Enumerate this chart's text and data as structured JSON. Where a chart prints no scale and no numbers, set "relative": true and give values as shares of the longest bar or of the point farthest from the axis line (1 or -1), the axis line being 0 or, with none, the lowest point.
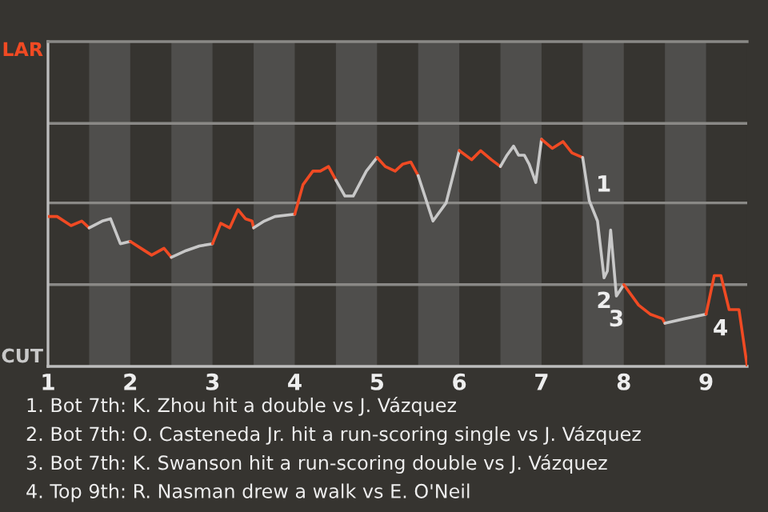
{
  "chart_data": {
    "type": "line",
    "relative": true,
    "xlim": [
      1,
      9.5
    ],
    "xticks": [
      {
        "value": 1,
        "label": "1"
      },
      {
        "value": 2,
        "label": "2"
      },
      {
        "value": 3,
        "label": "3"
      },
      {
        "value": 4,
        "label": "4"
      },
      {
        "value": 5,
        "label": "5"
      },
      {
        "value": 6,
        "label": "6"
      },
      {
        "value": 7,
        "label": "7"
      },
      {
        "value": 8,
        "label": "8"
      },
      {
        "value": 9,
        "label": "9"
      }
    ],
    "ref_lines": [
      {
        "axis": "y",
        "value": 0.36,
        "color": "#8a8986"
      },
      {
        "axis": "y",
        "value": 0.72,
        "color": "#8a8986"
      },
      {
        "axis": "y",
        "value": 1.07,
        "color": "#8a8986"
      }
    ],
    "legend": false,
    "marker": "none",
    "line_style": "solid",
    "bands": [
      {
        "axis": "x",
        "from": 1.5,
        "to": 2,
        "color": "#4f4e4c"
      },
      {
        "axis": "x",
        "from": 2.5,
        "to": 3,
        "color": "#4f4e4c"
      },
      {
        "axis": "x",
        "from": 3.5,
        "to": 4,
        "color": "#4f4e4c"
      },
      {
        "axis": "x",
        "from": 4.5,
        "to": 5,
        "color": "#4f4e4c"
      },
      {
        "axis": "x",
        "from": 5.5,
        "to": 6,
        "color": "#4f4e4c"
      },
      {
        "axis": "x",
        "from": 6.5,
        "to": 7,
        "color": "#4f4e4c"
      },
      {
        "axis": "x",
        "from": 7.5,
        "to": 8,
        "color": "#4f4e4c"
      },
      {
        "axis": "x",
        "from": 8.5,
        "to": 9,
        "color": "#4f4e4c"
      }
    ],
    "series": [
      {
        "color": "#f04a23",
        "x": [
          1.0,
          1.11,
          1.28,
          1.41,
          1.5
        ],
        "values": [
          0.66,
          0.66,
          0.62,
          0.64,
          0.61
        ]
      },
      {
        "color": "#c8c8c8",
        "x": [
          1.5,
          1.66,
          1.76,
          1.88,
          2.0
        ],
        "values": [
          0.61,
          0.64,
          0.65,
          0.54,
          0.55
        ]
      },
      {
        "color": "#f04a23",
        "x": [
          2.0,
          2.13,
          2.26,
          2.41,
          2.5
        ],
        "values": [
          0.55,
          0.52,
          0.49,
          0.52,
          0.48
        ]
      },
      {
        "color": "#c8c8c8",
        "x": [
          2.5,
          2.68,
          2.84,
          3.0
        ],
        "values": [
          0.48,
          0.51,
          0.53,
          0.54
        ]
      },
      {
        "color": "#f04a23",
        "x": [
          3.0,
          3.1,
          3.21,
          3.31,
          3.4,
          3.48,
          3.5
        ],
        "values": [
          0.54,
          0.63,
          0.61,
          0.69,
          0.65,
          0.64,
          0.61
        ]
      },
      {
        "color": "#c8c8c8",
        "x": [
          3.5,
          3.63,
          3.76,
          4.0
        ],
        "values": [
          0.61,
          0.64,
          0.66,
          0.67
        ]
      },
      {
        "color": "#f04a23",
        "x": [
          4.0,
          4.1,
          4.22,
          4.31,
          4.41,
          4.5
        ],
        "values": [
          0.67,
          0.8,
          0.86,
          0.86,
          0.88,
          0.82
        ]
      },
      {
        "color": "#c8c8c8",
        "x": [
          4.5,
          4.61,
          4.71,
          4.87,
          5.0
        ],
        "values": [
          0.82,
          0.75,
          0.75,
          0.86,
          0.92
        ]
      },
      {
        "color": "#f04a23",
        "x": [
          5.0,
          5.1,
          5.22,
          5.31,
          5.41,
          5.5
        ],
        "values": [
          0.92,
          0.88,
          0.86,
          0.89,
          0.9,
          0.84
        ]
      },
      {
        "color": "#c8c8c8",
        "x": [
          5.5,
          5.68,
          5.84,
          6.0
        ],
        "values": [
          0.84,
          0.64,
          0.72,
          0.95
        ]
      },
      {
        "color": "#f04a23",
        "x": [
          6.0,
          6.15,
          6.26,
          6.39,
          6.5
        ],
        "values": [
          0.95,
          0.91,
          0.95,
          0.91,
          0.88
        ]
      },
      {
        "color": "#c8c8c8",
        "x": [
          6.5,
          6.58,
          6.66,
          6.72,
          6.79,
          6.85,
          6.93,
          7.0
        ],
        "values": [
          0.88,
          0.93,
          0.97,
          0.93,
          0.93,
          0.89,
          0.81,
          1
        ]
      },
      {
        "color": "#f04a23",
        "x": [
          7.0,
          7.13,
          7.26,
          7.37,
          7.5
        ],
        "values": [
          1,
          0.96,
          0.99,
          0.94,
          0.92
        ]
      },
      {
        "color": "#c8c8c8",
        "x": [
          7.5,
          7.58,
          7.68,
          7.76,
          7.8,
          7.84,
          7.91,
          8.0
        ],
        "values": [
          0.92,
          0.73,
          0.64,
          0.39,
          0.42,
          0.6,
          0.31,
          0.36
        ]
      },
      {
        "color": "#f04a23",
        "x": [
          8.0,
          8.18,
          8.32,
          8.47,
          8.5
        ],
        "values": [
          0.36,
          0.27,
          0.23,
          0.21,
          0.19
        ]
      },
      {
        "color": "#c8c8c8",
        "x": [
          8.5,
          8.74,
          9.0
        ],
        "values": [
          0.19,
          0.21,
          0.23
        ]
      },
      {
        "color": "#f04a23",
        "x": [
          9.0,
          9.1,
          9.18,
          9.28,
          9.4,
          9.5
        ],
        "values": [
          0.23,
          0.4,
          0.4,
          0.25,
          0.25,
          0
        ]
      }
    ],
    "annotations": [
      "LAR",
      "CUT",
      {
        "text": "1",
        "x": 7.58,
        "y": 0.73
      },
      {
        "text": "2",
        "x": 7.76,
        "y": 0.39
      },
      {
        "text": "3",
        "x": 7.91,
        "y": 0.31
      },
      {
        "text": "4",
        "x": 9.0,
        "y": 0.23
      },
      "1. Bot 7th: K. Zhou hit a double vs J. Vázquez",
      "2. Bot 7th: O. Casteneda Jr. hit a run-scoring single vs J. Vázquez",
      "3. Bot 7th: K. Swanson hit a run-scoring double vs J. Vázquez",
      "4. Top 9th: R. Nasman drew a walk vs E. O'Neil"
    ]
  }
}
